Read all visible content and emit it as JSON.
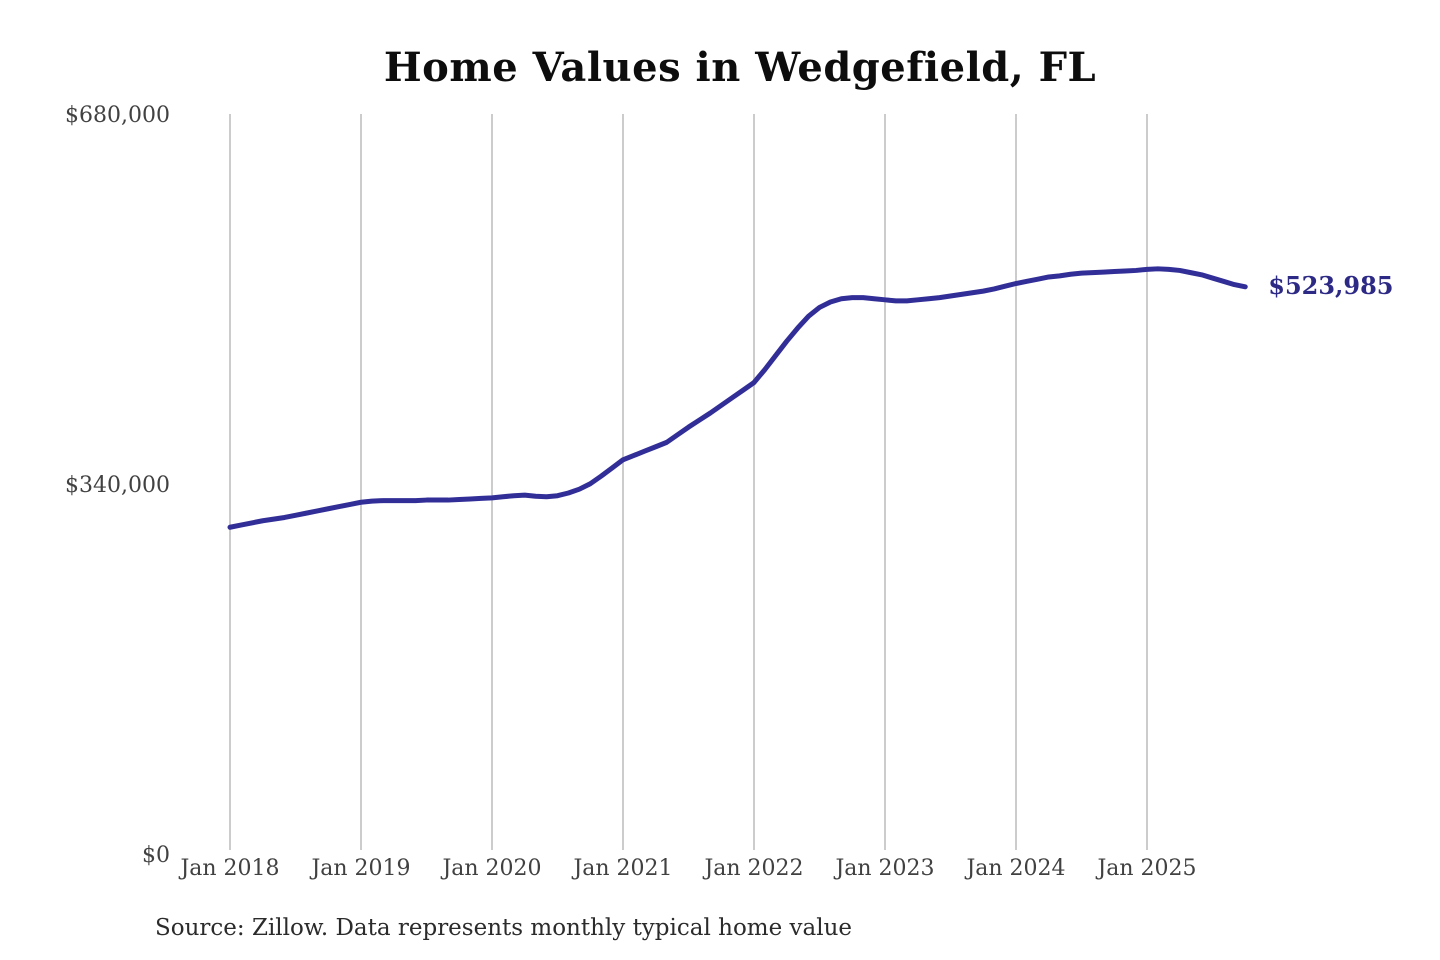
{
  "title": {
    "text": "Home Values in Wedgefield, FL"
  },
  "source": {
    "text": "Source: Zillow. Data represents monthly typical home value"
  },
  "colors": {
    "background": "#ffffff",
    "line": "#322e98",
    "end_label": "#2d2a86",
    "grid": "#cccccc",
    "axis_text": "#414141",
    "title_text": "#0d0d0d",
    "source_text": "#2b2b2b"
  },
  "chart_data": {
    "type": "line",
    "title": "Home Values in Wedgefield, FL",
    "series_name": "Monthly typical home value",
    "x_start": "2018-01",
    "x_end": "2025-10",
    "x_cadence": "monthly",
    "x_tick_labels": [
      "Jan 2018",
      "Jan 2019",
      "Jan 2020",
      "Jan 2021",
      "Jan 2022",
      "Jan 2023",
      "Jan 2024",
      "Jan 2025"
    ],
    "y_ticks": [
      {
        "label": "$0",
        "value": 0
      },
      {
        "label": "$340,000",
        "value": 340000
      },
      {
        "label": "$680,000",
        "value": 680000
      }
    ],
    "ylim": [
      0,
      680000
    ],
    "grid": "vertical-only",
    "legend": "none",
    "latest_value": 523985,
    "latest_value_label": "$523,985",
    "values": [
      303000,
      305000,
      307000,
      309000,
      310500,
      312000,
      314000,
      316000,
      318000,
      320000,
      322000,
      324000,
      326000,
      327000,
      327500,
      327500,
      327500,
      327500,
      328000,
      328000,
      328000,
      328500,
      329000,
      329500,
      330000,
      331000,
      332000,
      332500,
      331500,
      331000,
      332000,
      334500,
      338000,
      343000,
      350000,
      357500,
      365000,
      369000,
      373000,
      377000,
      381000,
      388000,
      395000,
      401500,
      408000,
      415000,
      422000,
      429000,
      436000,
      448000,
      461000,
      474000,
      486000,
      497000,
      505000,
      510000,
      513000,
      514000,
      514000,
      513000,
      512000,
      511000,
      511000,
      512000,
      513000,
      514000,
      515500,
      517000,
      518500,
      520000,
      522000,
      524500,
      527000,
      529000,
      531000,
      533000,
      534000,
      535500,
      536500,
      537000,
      537500,
      538000,
      538500,
      539000,
      540000,
      540500,
      540000,
      539000,
      537000,
      535000,
      532000,
      529000,
      526000,
      523985
    ]
  }
}
